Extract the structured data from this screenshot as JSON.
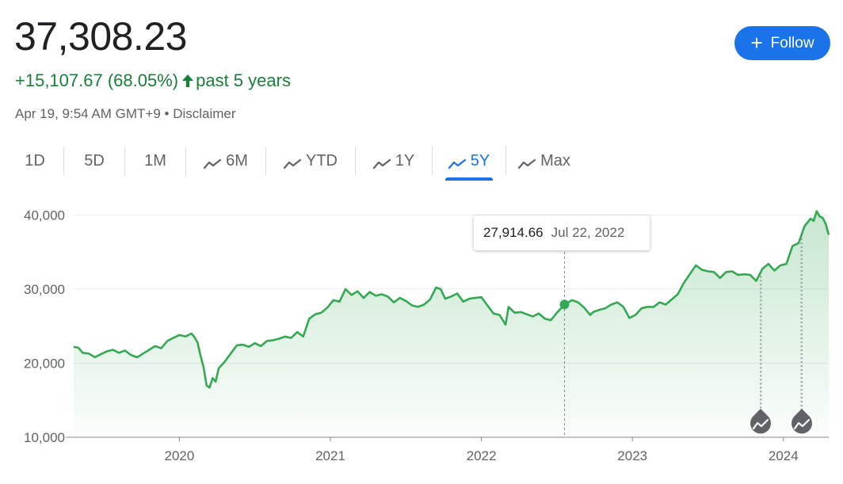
{
  "header": {
    "price": "37,308.23",
    "change": "+15,107.67 (68.05%)",
    "period": "past 5 years",
    "timestamp": "Apr 19, 9:54 AM GMT+9",
    "separator": "•",
    "disclaimer": "Disclaimer",
    "follow_label": "Follow"
  },
  "tabs": [
    {
      "label": "1D",
      "icon": "",
      "active": false
    },
    {
      "label": "5D",
      "icon": "",
      "active": false
    },
    {
      "label": "1M",
      "icon": "",
      "active": false
    },
    {
      "label": "6M",
      "icon": "trend-icon",
      "active": false
    },
    {
      "label": "YTD",
      "icon": "trend-icon",
      "active": false
    },
    {
      "label": "1Y",
      "icon": "trend-icon",
      "active": false
    },
    {
      "label": "5Y",
      "icon": "trend-icon",
      "active": true
    },
    {
      "label": "Max",
      "icon": "trend-icon",
      "active": false
    }
  ],
  "tooltip": {
    "value": "27,914.66",
    "date": "Jul 22, 2022"
  },
  "colors": {
    "positive": "#188038",
    "line": "#34a853",
    "accent": "#1a73e8"
  },
  "chart_data": {
    "type": "area",
    "x_ticks": [
      "2020",
      "2021",
      "2022",
      "2023",
      "2024"
    ],
    "y_ticks": [
      "10,000",
      "20,000",
      "30,000",
      "40,000"
    ],
    "ylim": [
      10000,
      41000
    ],
    "xlim": [
      2019.3,
      2024.3
    ],
    "grid": "horizontal",
    "hover_point": {
      "x": 2022.55,
      "y": 27914.66
    },
    "news_markers": [
      2023.85,
      2024.12
    ],
    "series": [
      {
        "values": [
          [
            2019.3,
            22200
          ],
          [
            2019.33,
            22100
          ],
          [
            2019.36,
            21400
          ],
          [
            2019.4,
            21300
          ],
          [
            2019.44,
            20800
          ],
          [
            2019.48,
            21200
          ],
          [
            2019.52,
            21600
          ],
          [
            2019.56,
            21800
          ],
          [
            2019.6,
            21400
          ],
          [
            2019.64,
            21700
          ],
          [
            2019.68,
            21100
          ],
          [
            2019.72,
            20800
          ],
          [
            2019.76,
            21300
          ],
          [
            2019.8,
            21800
          ],
          [
            2019.84,
            22300
          ],
          [
            2019.88,
            22000
          ],
          [
            2019.92,
            23000
          ],
          [
            2019.96,
            23400
          ],
          [
            2020.0,
            23800
          ],
          [
            2020.04,
            23600
          ],
          [
            2020.08,
            24000
          ],
          [
            2020.1,
            23500
          ],
          [
            2020.12,
            22800
          ],
          [
            2020.14,
            21000
          ],
          [
            2020.16,
            19500
          ],
          [
            2020.18,
            17000
          ],
          [
            2020.2,
            16700
          ],
          [
            2020.22,
            18000
          ],
          [
            2020.24,
            17500
          ],
          [
            2020.26,
            19300
          ],
          [
            2020.3,
            20200
          ],
          [
            2020.34,
            21300
          ],
          [
            2020.38,
            22400
          ],
          [
            2020.42,
            22500
          ],
          [
            2020.46,
            22200
          ],
          [
            2020.5,
            22700
          ],
          [
            2020.54,
            22300
          ],
          [
            2020.58,
            23000
          ],
          [
            2020.62,
            23100
          ],
          [
            2020.66,
            23300
          ],
          [
            2020.7,
            23600
          ],
          [
            2020.74,
            23400
          ],
          [
            2020.78,
            24200
          ],
          [
            2020.82,
            23600
          ],
          [
            2020.86,
            26000
          ],
          [
            2020.9,
            26600
          ],
          [
            2020.94,
            26800
          ],
          [
            2020.98,
            27500
          ],
          [
            2021.02,
            28500
          ],
          [
            2021.06,
            28300
          ],
          [
            2021.1,
            30000
          ],
          [
            2021.14,
            29200
          ],
          [
            2021.18,
            29700
          ],
          [
            2021.22,
            28800
          ],
          [
            2021.26,
            29600
          ],
          [
            2021.3,
            29100
          ],
          [
            2021.34,
            29300
          ],
          [
            2021.38,
            29000
          ],
          [
            2021.42,
            28200
          ],
          [
            2021.46,
            28800
          ],
          [
            2021.5,
            28400
          ],
          [
            2021.54,
            27800
          ],
          [
            2021.58,
            27600
          ],
          [
            2021.62,
            27900
          ],
          [
            2021.66,
            28600
          ],
          [
            2021.7,
            30200
          ],
          [
            2021.73,
            30000
          ],
          [
            2021.76,
            28700
          ],
          [
            2021.8,
            29000
          ],
          [
            2021.84,
            29400
          ],
          [
            2021.88,
            28300
          ],
          [
            2021.92,
            28700
          ],
          [
            2021.96,
            28800
          ],
          [
            2022.0,
            28900
          ],
          [
            2022.04,
            27800
          ],
          [
            2022.08,
            26700
          ],
          [
            2022.12,
            26500
          ],
          [
            2022.16,
            25200
          ],
          [
            2022.18,
            27600
          ],
          [
            2022.22,
            26800
          ],
          [
            2022.26,
            26900
          ],
          [
            2022.3,
            26600
          ],
          [
            2022.34,
            26300
          ],
          [
            2022.38,
            26700
          ],
          [
            2022.42,
            26000
          ],
          [
            2022.46,
            25800
          ],
          [
            2022.5,
            26800
          ],
          [
            2022.55,
            27914.66
          ],
          [
            2022.6,
            28500
          ],
          [
            2022.64,
            28200
          ],
          [
            2022.68,
            27500
          ],
          [
            2022.72,
            26500
          ],
          [
            2022.74,
            26900
          ],
          [
            2022.78,
            27200
          ],
          [
            2022.82,
            27400
          ],
          [
            2022.86,
            27900
          ],
          [
            2022.9,
            28200
          ],
          [
            2022.94,
            27600
          ],
          [
            2022.98,
            26100
          ],
          [
            2023.02,
            26500
          ],
          [
            2023.06,
            27400
          ],
          [
            2023.1,
            27600
          ],
          [
            2023.14,
            27600
          ],
          [
            2023.18,
            28200
          ],
          [
            2023.22,
            27900
          ],
          [
            2023.26,
            28600
          ],
          [
            2023.3,
            29300
          ],
          [
            2023.34,
            30800
          ],
          [
            2023.38,
            32000
          ],
          [
            2023.42,
            33200
          ],
          [
            2023.46,
            32600
          ],
          [
            2023.5,
            32400
          ],
          [
            2023.54,
            32300
          ],
          [
            2023.58,
            31500
          ],
          [
            2023.62,
            32300
          ],
          [
            2023.66,
            32400
          ],
          [
            2023.7,
            31900
          ],
          [
            2023.74,
            32000
          ],
          [
            2023.78,
            31900
          ],
          [
            2023.82,
            31100
          ],
          [
            2023.86,
            32700
          ],
          [
            2023.9,
            33400
          ],
          [
            2023.94,
            32500
          ],
          [
            2023.98,
            33200
          ],
          [
            2024.02,
            33400
          ],
          [
            2024.06,
            35800
          ],
          [
            2024.1,
            36200
          ],
          [
            2024.14,
            38500
          ],
          [
            2024.18,
            39500
          ],
          [
            2024.2,
            39200
          ],
          [
            2024.22,
            40500
          ],
          [
            2024.24,
            39800
          ],
          [
            2024.26,
            39600
          ],
          [
            2024.28,
            38800
          ],
          [
            2024.3,
            37308.23
          ]
        ]
      }
    ]
  }
}
